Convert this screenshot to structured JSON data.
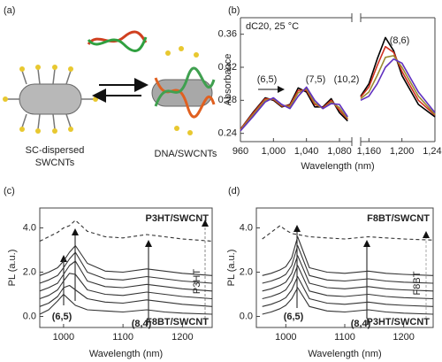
{
  "panel_a": {
    "panel": "(a)",
    "left_label": [
      "SC-dispersed",
      "SWCNTs"
    ],
    "right_label": "DNA/SWCNTs"
  },
  "chart_data": [
    {
      "type": "line",
      "panel": "(b)",
      "y_label": "Absorbance",
      "x_label": "Wavelength (nm)",
      "x": [
        960,
        975,
        990,
        1000,
        1010,
        1020,
        1030,
        1040,
        1050,
        1060,
        1070,
        1080,
        1090,
        1120,
        1150,
        1160,
        1170,
        1180,
        1190,
        1200,
        1220,
        1240
      ],
      "axis_break": [
        1095,
        1150
      ],
      "xlim": [
        960,
        1240
      ],
      "ylim": [
        0.23,
        0.38
      ],
      "xticks": [
        960,
        {
          "value": 1000,
          "label": "1,000"
        },
        {
          "value": 1040,
          "label": "1,040"
        },
        {
          "value": 1080,
          "label": "1,080"
        },
        {
          "value": 1160,
          "label": "1,160"
        },
        {
          "value": 1200,
          "label": "1,200"
        },
        {
          "value": 1240,
          "label": "1,240"
        }
      ],
      "yticks": [
        0.24,
        0.28,
        0.32,
        0.36
      ],
      "annotations": [
        "dC20, 25 °C",
        "(6,5)",
        "(7,5)",
        "(10,2)",
        "(8,6)"
      ],
      "series": [
        {
          "color": "#000000",
          "values": [
            0.245,
            0.265,
            0.283,
            0.28,
            0.272,
            0.275,
            0.295,
            0.29,
            0.272,
            0.272,
            0.282,
            0.265,
            0.255,
            null,
            0.285,
            0.3,
            0.33,
            0.356,
            0.34,
            0.31,
            0.275,
            0.26
          ]
        },
        {
          "color": "#d03020",
          "values": [
            0.245,
            0.264,
            0.282,
            0.281,
            0.273,
            0.274,
            0.292,
            0.292,
            0.275,
            0.271,
            0.28,
            0.268,
            0.257,
            null,
            0.284,
            0.296,
            0.322,
            0.345,
            0.338,
            0.315,
            0.28,
            0.262
          ]
        },
        {
          "color": "#9a8a30",
          "values": [
            0.244,
            0.262,
            0.28,
            0.282,
            0.274,
            0.272,
            0.289,
            0.294,
            0.277,
            0.27,
            0.278,
            0.271,
            0.258,
            null,
            0.282,
            0.29,
            0.31,
            0.332,
            0.334,
            0.32,
            0.285,
            0.263
          ]
        },
        {
          "color": "#6030c0",
          "values": [
            0.243,
            0.26,
            0.278,
            0.283,
            0.275,
            0.27,
            0.285,
            0.296,
            0.28,
            0.27,
            0.276,
            0.275,
            0.26,
            null,
            0.28,
            0.285,
            0.3,
            0.32,
            0.33,
            0.325,
            0.29,
            0.265
          ]
        }
      ]
    },
    {
      "type": "line",
      "panel": "(c)",
      "y_label": "PL (a.u.)",
      "x_label": "Wavelength (nm)",
      "x": [
        960,
        975,
        990,
        1000,
        1010,
        1020,
        1040,
        1070,
        1100,
        1140,
        1170,
        1200,
        1250
      ],
      "xlim": [
        960,
        1250
      ],
      "ylim": [
        -0.5,
        4.9
      ],
      "xticks": [
        1000,
        1100,
        1200
      ],
      "yticks": [
        {
          "value": 0,
          "label": "0.0"
        },
        {
          "value": 2,
          "label": "2.0"
        },
        {
          "value": 4,
          "label": "4.0"
        }
      ],
      "annotations": [
        "P3HT/SWCNT",
        "F8BT/SWCNT",
        "(6,5)",
        "(8,4)",
        "P3HT"
      ],
      "series": [
        {
          "color": "#333333",
          "values": [
            0.1,
            0.3,
            0.7,
            1.0,
            0.75,
            0.5,
            0.3,
            0.25,
            0.2,
            0.3,
            0.2,
            0.15,
            0.1
          ]
        },
        {
          "color": "#333333",
          "values": [
            0.45,
            0.6,
            0.9,
            1.3,
            1.4,
            1.2,
            0.8,
            0.65,
            0.6,
            0.75,
            0.65,
            0.55,
            0.45
          ]
        },
        {
          "color": "#333333",
          "values": [
            0.8,
            0.95,
            1.2,
            1.6,
            1.95,
            1.9,
            1.2,
            1.0,
            0.95,
            1.1,
            1.0,
            0.9,
            0.8
          ]
        },
        {
          "color": "#333333",
          "values": [
            1.15,
            1.3,
            1.5,
            1.9,
            2.3,
            2.5,
            1.6,
            1.35,
            1.3,
            1.45,
            1.35,
            1.25,
            1.15
          ]
        },
        {
          "color": "#333333",
          "values": [
            1.5,
            1.65,
            1.85,
            2.2,
            2.6,
            2.9,
            2.0,
            1.7,
            1.65,
            1.8,
            1.7,
            1.6,
            1.5
          ]
        },
        {
          "color": "#333333",
          "values": [
            1.85,
            2.0,
            2.2,
            2.5,
            2.9,
            3.2,
            2.4,
            2.05,
            2.0,
            2.15,
            2.05,
            1.95,
            1.85
          ]
        },
        {
          "color": "#333333",
          "dashed": true,
          "values": [
            3.4,
            3.6,
            3.8,
            4.0,
            4.1,
            4.35,
            3.85,
            3.6,
            3.55,
            3.7,
            3.6,
            3.5,
            3.4
          ]
        }
      ]
    },
    {
      "type": "line",
      "panel": "(d)",
      "y_label": "PL (a.u.)",
      "x_label": "Wavelength (nm)",
      "x": [
        960,
        975,
        990,
        1000,
        1010,
        1020,
        1040,
        1070,
        1100,
        1140,
        1170,
        1200,
        1250
      ],
      "xlim": [
        950,
        1250
      ],
      "ylim": [
        -0.5,
        4.9
      ],
      "xticks": [
        1000,
        1100,
        1200
      ],
      "yticks": [
        {
          "value": 0,
          "label": "0.0"
        },
        {
          "value": 2,
          "label": "2.0"
        },
        {
          "value": 4,
          "label": "4.0"
        }
      ],
      "annotations": [
        "F8BT/SWCNT",
        "P3HT/SWCNT",
        "(6,5)",
        "(8,4)",
        "F8BT"
      ],
      "series": [
        {
          "color": "#333333",
          "values": [
            0.1,
            0.2,
            0.35,
            0.5,
            0.8,
            1.3,
            0.45,
            0.25,
            0.2,
            0.3,
            0.2,
            0.15,
            0.1
          ]
        },
        {
          "color": "#333333",
          "values": [
            0.45,
            0.55,
            0.7,
            0.85,
            1.2,
            1.8,
            0.8,
            0.6,
            0.55,
            0.65,
            0.55,
            0.5,
            0.45
          ]
        },
        {
          "color": "#333333",
          "values": [
            0.8,
            0.9,
            1.05,
            1.2,
            1.6,
            2.3,
            1.15,
            0.95,
            0.9,
            1.0,
            0.9,
            0.85,
            0.8
          ]
        },
        {
          "color": "#333333",
          "values": [
            1.15,
            1.25,
            1.4,
            1.55,
            1.95,
            2.75,
            1.5,
            1.3,
            1.25,
            1.35,
            1.25,
            1.2,
            1.15
          ]
        },
        {
          "color": "#333333",
          "values": [
            1.5,
            1.6,
            1.75,
            1.9,
            2.3,
            3.2,
            1.85,
            1.65,
            1.6,
            1.7,
            1.6,
            1.55,
            1.5
          ]
        },
        {
          "color": "#333333",
          "values": [
            1.85,
            1.95,
            2.1,
            2.25,
            2.65,
            3.6,
            2.2,
            2.0,
            1.95,
            2.05,
            1.95,
            1.9,
            1.85
          ]
        },
        {
          "color": "#333333",
          "dashed": true,
          "values": [
            3.5,
            3.8,
            4.1,
            3.9,
            3.75,
            3.7,
            3.6,
            3.55,
            3.5,
            3.6,
            3.55,
            3.5,
            3.45
          ]
        }
      ]
    }
  ]
}
